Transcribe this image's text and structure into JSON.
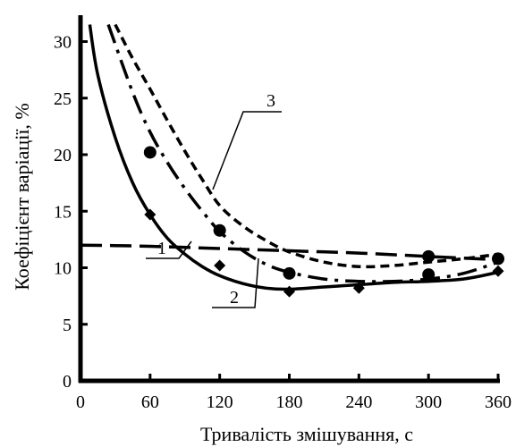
{
  "chart_data": {
    "type": "line",
    "xlabel": "Тривалість змішування, с",
    "ylabel": "Коефіцієнт варіації, %",
    "xlim": [
      0,
      360
    ],
    "ylim": [
      0,
      32
    ],
    "x_ticks": [
      "0",
      "60",
      "120",
      "180",
      "240",
      "300",
      "360"
    ],
    "y_ticks": [
      "0",
      "5",
      "10",
      "15",
      "20",
      "25",
      "30"
    ],
    "grid": false,
    "curve_labels": [
      "1",
      "2",
      "3"
    ],
    "series": [
      {
        "marker": "none",
        "dash": "long-dash",
        "x": [
          0,
          60,
          120,
          180,
          240,
          300,
          360
        ],
        "y": [
          12,
          11.9,
          11.7,
          11.5,
          11.3,
          11.0,
          10.7
        ]
      },
      {
        "marker": "none",
        "dash": "solid",
        "x": [
          8,
          15,
          30,
          45,
          60,
          75,
          90,
          105,
          120,
          140,
          160,
          180,
          210,
          240,
          270,
          300,
          330,
          360
        ],
        "y": [
          31.5,
          27,
          21.5,
          17.5,
          14.7,
          12.6,
          11.2,
          10.1,
          9.3,
          8.6,
          8.2,
          8.1,
          8.3,
          8.5,
          8.7,
          8.8,
          9.0,
          9.6
        ]
      },
      {
        "marker": "none",
        "dash": "dash-dot",
        "x": [
          24,
          45,
          60,
          75,
          90,
          105,
          120,
          140,
          160,
          180,
          210,
          240,
          270,
          300,
          330,
          360
        ],
        "y": [
          31.5,
          25.5,
          22,
          19.3,
          17,
          15,
          13.2,
          11.5,
          10.3,
          9.6,
          9.0,
          8.8,
          8.8,
          9.0,
          9.5,
          10.5
        ]
      },
      {
        "marker": "none",
        "dash": "short-dash",
        "x": [
          30,
          45,
          60,
          75,
          90,
          105,
          120,
          140,
          160,
          180,
          210,
          240,
          270,
          300,
          330,
          360
        ],
        "y": [
          31.5,
          28.5,
          25.8,
          23,
          20.3,
          17.8,
          15.5,
          13.7,
          12.4,
          11.4,
          10.5,
          10.1,
          10.2,
          10.5,
          10.8,
          11.2
        ]
      }
    ],
    "points": [
      {
        "marker": "circle",
        "x": [
          60,
          120,
          180,
          300,
          300,
          360
        ],
        "y": [
          20.2,
          13.3,
          9.5,
          11.0,
          9.4,
          10.8
        ]
      },
      {
        "marker": "diamond",
        "x": [
          60,
          120,
          180,
          240,
          360
        ],
        "y": [
          14.7,
          10.2,
          7.9,
          8.2,
          9.7
        ]
      }
    ]
  },
  "colors": {
    "ink": "#000000",
    "background": "#ffffff"
  }
}
